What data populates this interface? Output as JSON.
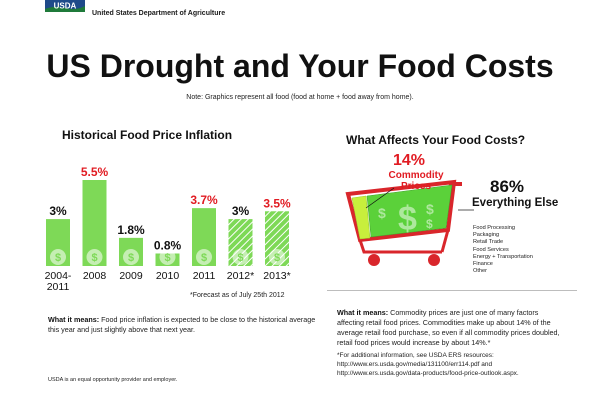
{
  "header": {
    "logo_text": "USDA",
    "agency": "United States Department of Agriculture",
    "title": "US Drought and Your Food Costs",
    "note": "Note: Graphics represent all food (food at home + food away from home)."
  },
  "left_panel": {
    "title": "Historical Food Price Inflation",
    "forecast_note": "*Forecast as of July 25th 2012",
    "means_label": "What it means:",
    "means_text": " Food price inflation is expected to be close to the historical average this year and just slightly above that next year."
  },
  "chart_data": {
    "type": "bar",
    "title": "Historical Food Price Inflation",
    "categories": [
      "2004-\n2011",
      "2008",
      "2009",
      "2010",
      "2011",
      "2012*",
      "2013*"
    ],
    "category_lines": [
      [
        "2004-",
        "2011"
      ],
      [
        "2008"
      ],
      [
        "2009"
      ],
      [
        "2010"
      ],
      [
        "2011"
      ],
      [
        "2012*"
      ],
      [
        "2013*"
      ]
    ],
    "values": [
      3,
      5.5,
      1.8,
      0.8,
      3.7,
      3,
      3.5
    ],
    "labels": [
      "3%",
      "5.5%",
      "1.8%",
      "0.8%",
      "3.7%",
      "3%",
      "3.5%"
    ],
    "label_colors": [
      "#111111",
      "#e11b22",
      "#111111",
      "#111111",
      "#e11b22",
      "#111111",
      "#e11b22"
    ],
    "forecast": [
      false,
      false,
      false,
      false,
      false,
      true,
      true
    ],
    "bar_color": "#7ed957",
    "ylim": [
      0,
      5.5
    ]
  },
  "right_panel": {
    "title": "What Affects Your Food Costs?",
    "commodity_pct": "14%",
    "commodity_label": "Commodity Prices",
    "else_pct": "86%",
    "else_label": "Everything Else",
    "else_items": [
      "Food Processing",
      "Packaging",
      "Retail Trade",
      "Food Services",
      "Energy + Transportation",
      "Finance",
      "Other"
    ],
    "means_label": "What it means:",
    "means_text": " Commodity prices are just one of many factors affecting retail food prices. Commodities make up about 14% of the average retail food purchase, so even if all commodity prices doubled, retail food prices would increase by about 14%.*",
    "footnote": "*For additional information, see USDA ERS resources: http://www.ers.usda.gov/media/131100/err114.pdf and http://www.ers.usda.gov/data-products/food-price-outlook.aspx."
  },
  "footer": {
    "equal_opportunity": "USDA is an equal opportunity provider and employer."
  },
  "colors": {
    "accent_red": "#e11b22",
    "bar_green": "#7ed957",
    "cart_red": "#d9262b",
    "logo_green": "#1f7a3a",
    "logo_blue": "#1f4a8a"
  }
}
